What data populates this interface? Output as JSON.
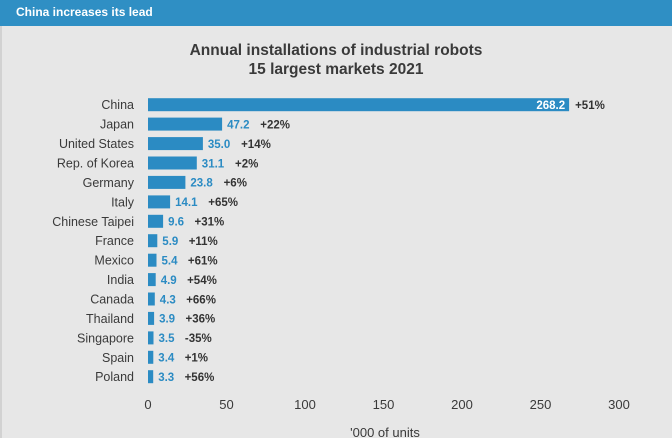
{
  "header": {
    "title": "China increases its lead"
  },
  "colors": {
    "bar": "#2b8bc3",
    "header": "#2f8fc4",
    "panel": "#e7e7e7",
    "value_text": "#2b8bc3",
    "change_text": "#333333"
  },
  "chart_data": {
    "type": "bar",
    "orientation": "horizontal",
    "title_line1": "Annual installations of industrial robots",
    "title_line2": "15 largest markets 2021",
    "xlabel": "'000 of units",
    "xlim": [
      0,
      300
    ],
    "x_ticks": [
      "0",
      "50",
      "100",
      "150",
      "200",
      "250",
      "300"
    ],
    "categories": [
      "China",
      "Japan",
      "United States",
      "Rep. of Korea",
      "Germany",
      "Italy",
      "Chinese Taipei",
      "France",
      "Mexico",
      "India",
      "Canada",
      "Thailand",
      "Singapore",
      "Spain",
      "Poland"
    ],
    "values": [
      268.2,
      47.2,
      35.0,
      31.1,
      23.8,
      14.1,
      9.6,
      5.9,
      5.4,
      4.9,
      4.3,
      3.9,
      3.5,
      3.4,
      3.3
    ],
    "value_labels": [
      "268.2",
      "47.2",
      "35.0",
      "31.1",
      "23.8",
      "14.1",
      "9.6",
      "5.9",
      "5.4",
      "4.9",
      "4.3",
      "3.9",
      "3.5",
      "3.4",
      "3.3"
    ],
    "change_labels": [
      "+51%",
      "+22%",
      "+14%",
      "+2%",
      "+6%",
      "+65%",
      "+31%",
      "+11%",
      "+61%",
      "+54%",
      "+66%",
      "+36%",
      "-35%",
      "+1%",
      "+56%"
    ]
  }
}
